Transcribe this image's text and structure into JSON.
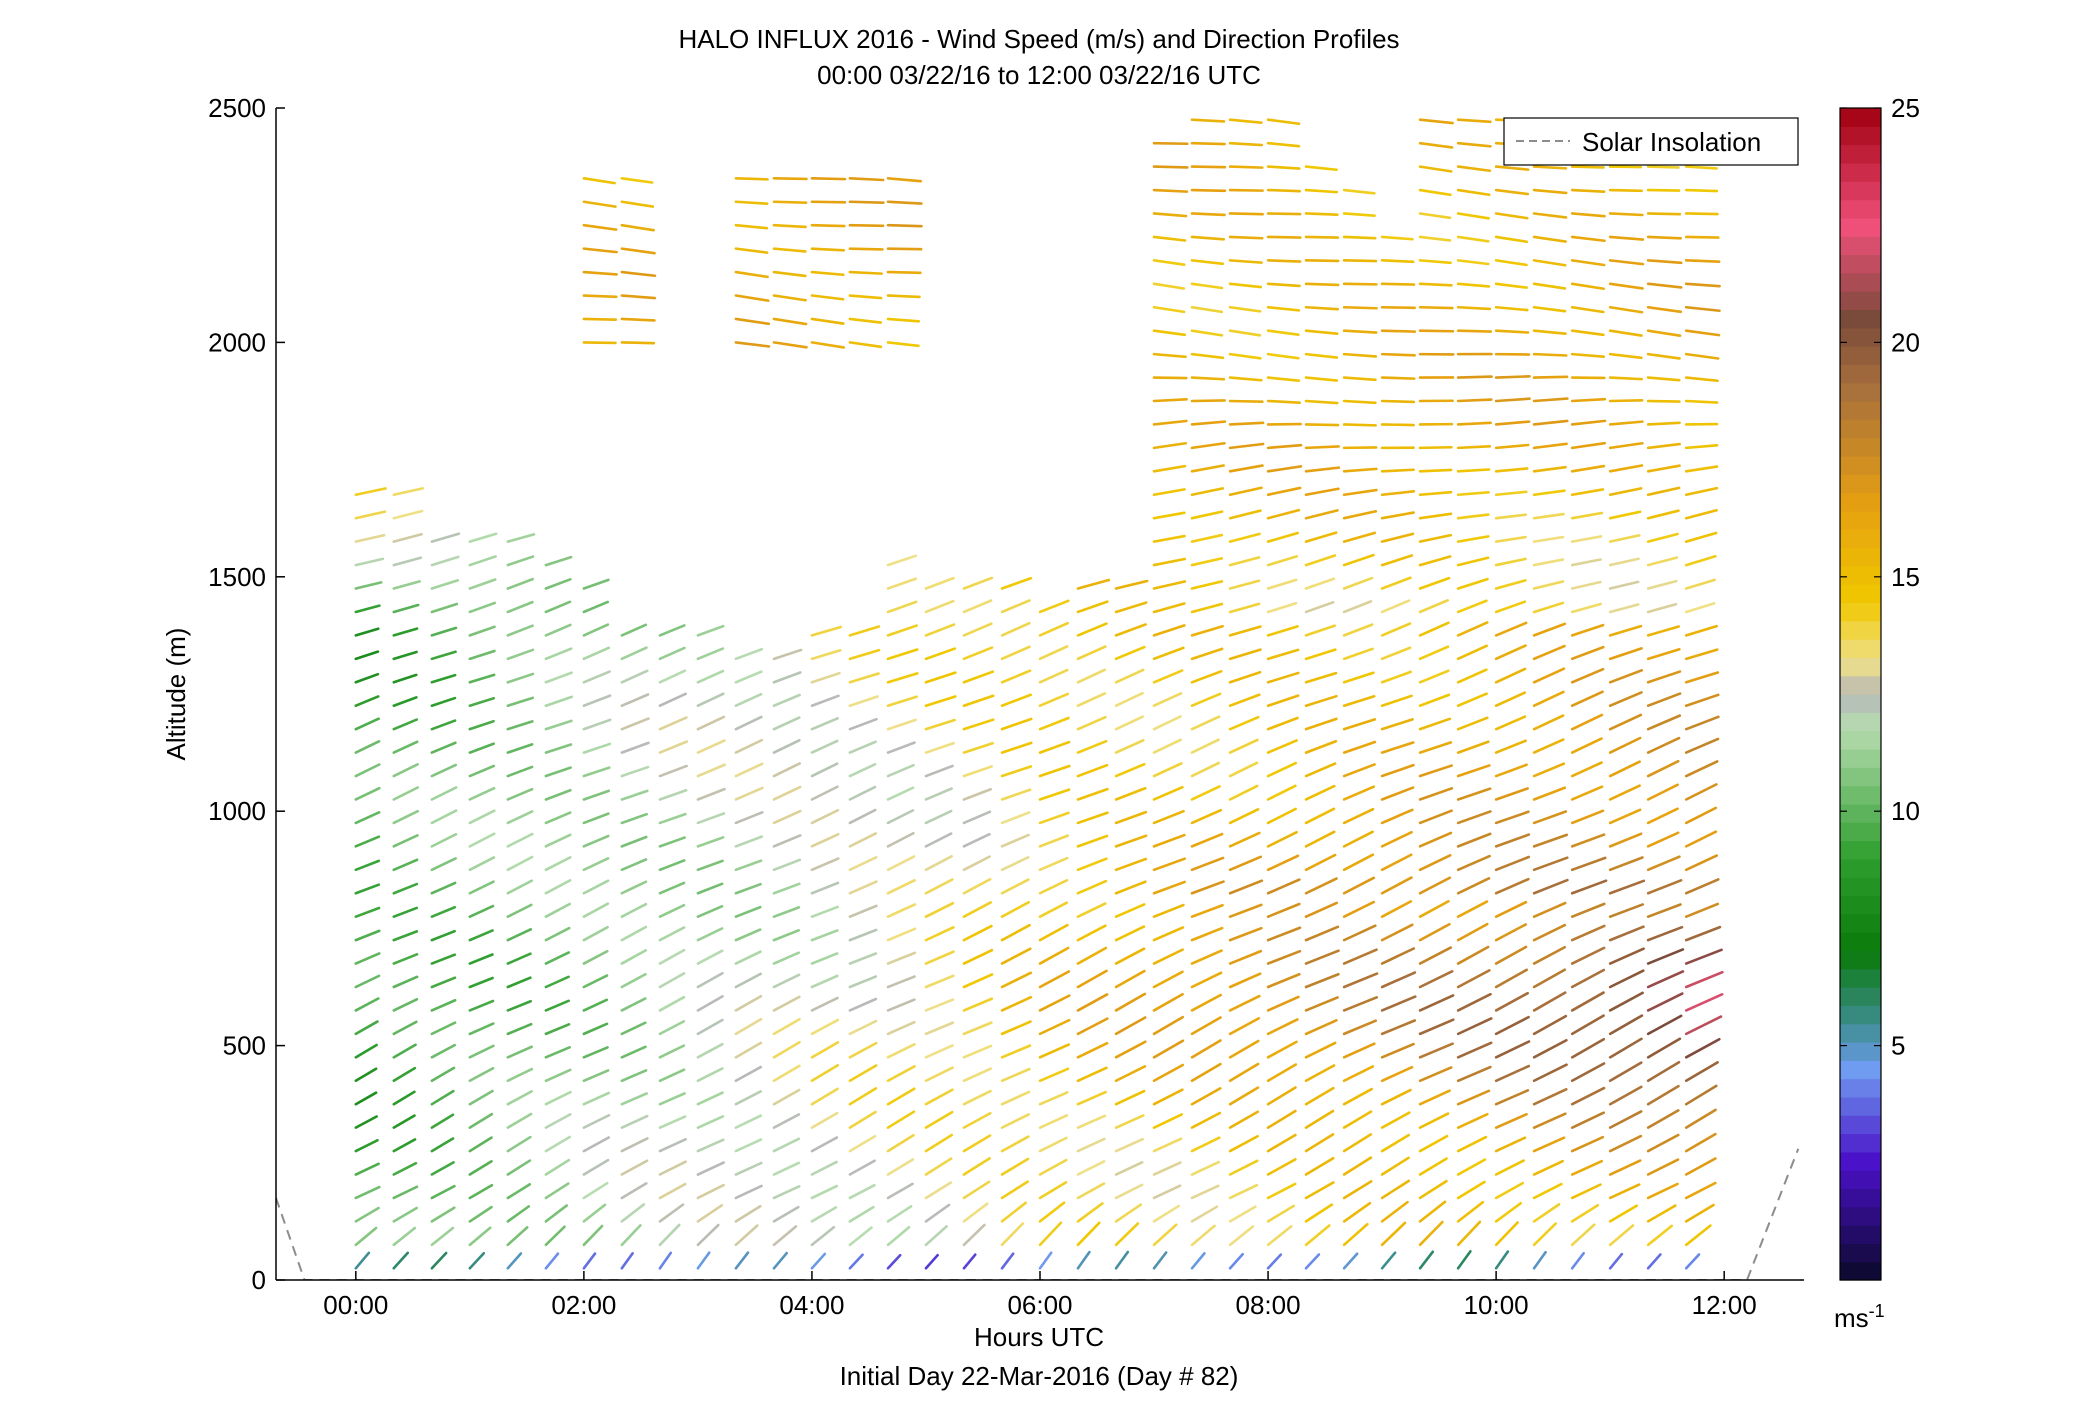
{
  "chart_data": {
    "type": "wind_barb_profile",
    "title": "HALO INFLUX 2016 - Wind Speed (m/s) and Direction Profiles",
    "subtitle": "00:00 03/22/16 to 12:00 03/22/16  UTC",
    "xlabel": "Hours UTC",
    "xlabel2": "Initial Day 22-Mar-2016 (Day # 82)",
    "ylabel": "Altitude (m)",
    "xlim": [
      -0.7,
      12.7
    ],
    "ylim": [
      0,
      2500
    ],
    "x_ticks": [
      {
        "value": 0,
        "label": "00:00"
      },
      {
        "value": 2,
        "label": "02:00"
      },
      {
        "value": 4,
        "label": "04:00"
      },
      {
        "value": 6,
        "label": "06:00"
      },
      {
        "value": 8,
        "label": "08:00"
      },
      {
        "value": 10,
        "label": "10:00"
      },
      {
        "value": 12,
        "label": "12:00"
      }
    ],
    "y_ticks": [
      {
        "value": 0,
        "label": "0"
      },
      {
        "value": 500,
        "label": "500"
      },
      {
        "value": 1000,
        "label": "1000"
      },
      {
        "value": 1500,
        "label": "1500"
      },
      {
        "value": 2000,
        "label": "2000"
      },
      {
        "value": 2500,
        "label": "2500"
      }
    ],
    "legend": {
      "label": "Solar Insolation",
      "placement": "top-right",
      "line_color": "#8c8c8c"
    },
    "colorbar": {
      "range": [
        0,
        25
      ],
      "ticks": [
        {
          "value": 5,
          "label": "5"
        },
        {
          "value": 10,
          "label": "10"
        },
        {
          "value": 15,
          "label": "15"
        },
        {
          "value": 20,
          "label": "20"
        },
        {
          "value": 25,
          "label": "25"
        }
      ],
      "unit_base": "ms",
      "unit_exp": "-1",
      "stops": [
        {
          "v": 0,
          "color": "#0a0a28"
        },
        {
          "v": 2.5,
          "color": "#4a10c8"
        },
        {
          "v": 4.5,
          "color": "#6f9cf0"
        },
        {
          "v": 5.5,
          "color": "#3c8c8c"
        },
        {
          "v": 7,
          "color": "#0a7a0a"
        },
        {
          "v": 9,
          "color": "#2e9e2e"
        },
        {
          "v": 11.8,
          "color": "#b6dcb0"
        },
        {
          "v": 12.5,
          "color": "#b8b8b8"
        },
        {
          "v": 13.2,
          "color": "#efe088"
        },
        {
          "v": 14.5,
          "color": "#f0c800"
        },
        {
          "v": 16.5,
          "color": "#e6a010"
        },
        {
          "v": 19,
          "color": "#a8703c"
        },
        {
          "v": 20.5,
          "color": "#7a4a3a"
        },
        {
          "v": 22.5,
          "color": "#f0507a"
        },
        {
          "v": 25,
          "color": "#a00010"
        }
      ]
    },
    "profile_times": [
      0.0,
      0.333,
      0.667,
      1.0,
      1.333,
      1.667,
      2.0,
      2.333,
      2.667,
      3.0,
      3.333,
      3.667,
      4.0,
      4.333,
      4.667,
      5.0,
      5.333,
      5.667,
      6.0,
      6.333,
      6.667,
      7.0,
      7.333,
      7.667,
      8.0,
      8.333,
      8.667,
      9.0,
      9.333,
      9.667,
      10.0,
      10.333,
      10.667,
      11.0,
      11.333,
      11.667
    ],
    "profile_tops_m": [
      1700,
      1700,
      1620,
      1580,
      1580,
      1540,
      1500,
      1420,
      1410,
      1400,
      1370,
      1370,
      1380,
      1420,
      1530,
      1500,
      1500,
      1480,
      1460,
      1490,
      1510,
      2470,
      2500,
      2500,
      2500,
      2420,
      2330,
      2240,
      2500,
      2500,
      2500,
      2500,
      2500,
      2500,
      2500,
      2500
    ],
    "upper_layer": {
      "range_m": [
        2000,
        2350
      ],
      "times": [
        2.0,
        2.333,
        3.333,
        3.667,
        4.0,
        4.333,
        4.667
      ]
    },
    "altitude_step_m": 50,
    "speed_model": {
      "near_surface_m_s": 3.5,
      "early_morning_low_level_m_s": 9.5,
      "midday_low_level_m_s": 14,
      "late_lowlevel_jet_m_s": 22,
      "upper_level_m_s": 15.5
    },
    "direction_model_deg": {
      "low_level": 60,
      "mid_level": 70,
      "upper_level": 95
    },
    "solar_insolation": [
      {
        "x": -0.7,
        "y": 175
      },
      {
        "x": -0.45,
        "y": 0
      },
      {
        "x": 12.2,
        "y": 0
      },
      {
        "x": 12.65,
        "y": 280
      }
    ]
  }
}
